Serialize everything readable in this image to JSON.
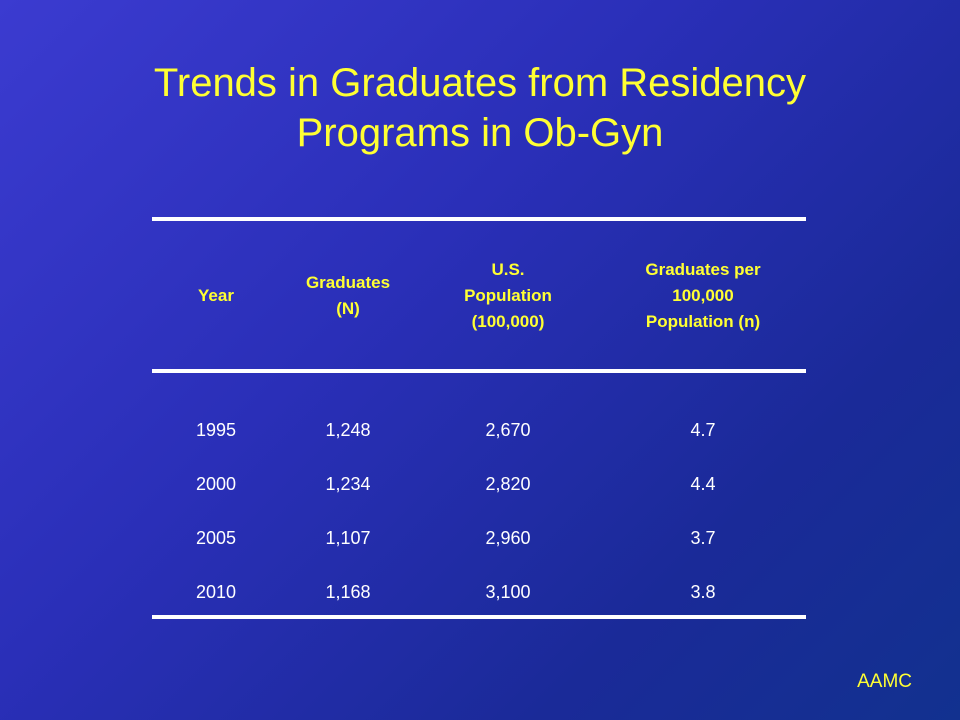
{
  "slide": {
    "title_line1": "Trends in Graduates from Residency",
    "title_line2": "Programs in Ob-Gyn",
    "footer": "AAMC"
  },
  "table": {
    "headers": [
      {
        "line1": "Year",
        "line2": "",
        "line3": ""
      },
      {
        "line1": "Graduates",
        "line2": "(N)",
        "line3": ""
      },
      {
        "line1": "U.S.",
        "line2": "Population",
        "line3": "(100,000)"
      },
      {
        "line1": "Graduates per",
        "line2": "100,000",
        "line3": "Population (n)"
      }
    ],
    "rows": [
      [
        "1995",
        "1,248",
        "2,670",
        "4.7"
      ],
      [
        "2000",
        "1,234",
        "2,820",
        "4.4"
      ],
      [
        "2005",
        "1,107",
        "2,960",
        "3.7"
      ],
      [
        "2010",
        "1,168",
        "3,100",
        "3.8"
      ]
    ]
  },
  "colors": {
    "title": "#ffff33",
    "text": "#ffffff",
    "background": "#2a2fb8"
  }
}
